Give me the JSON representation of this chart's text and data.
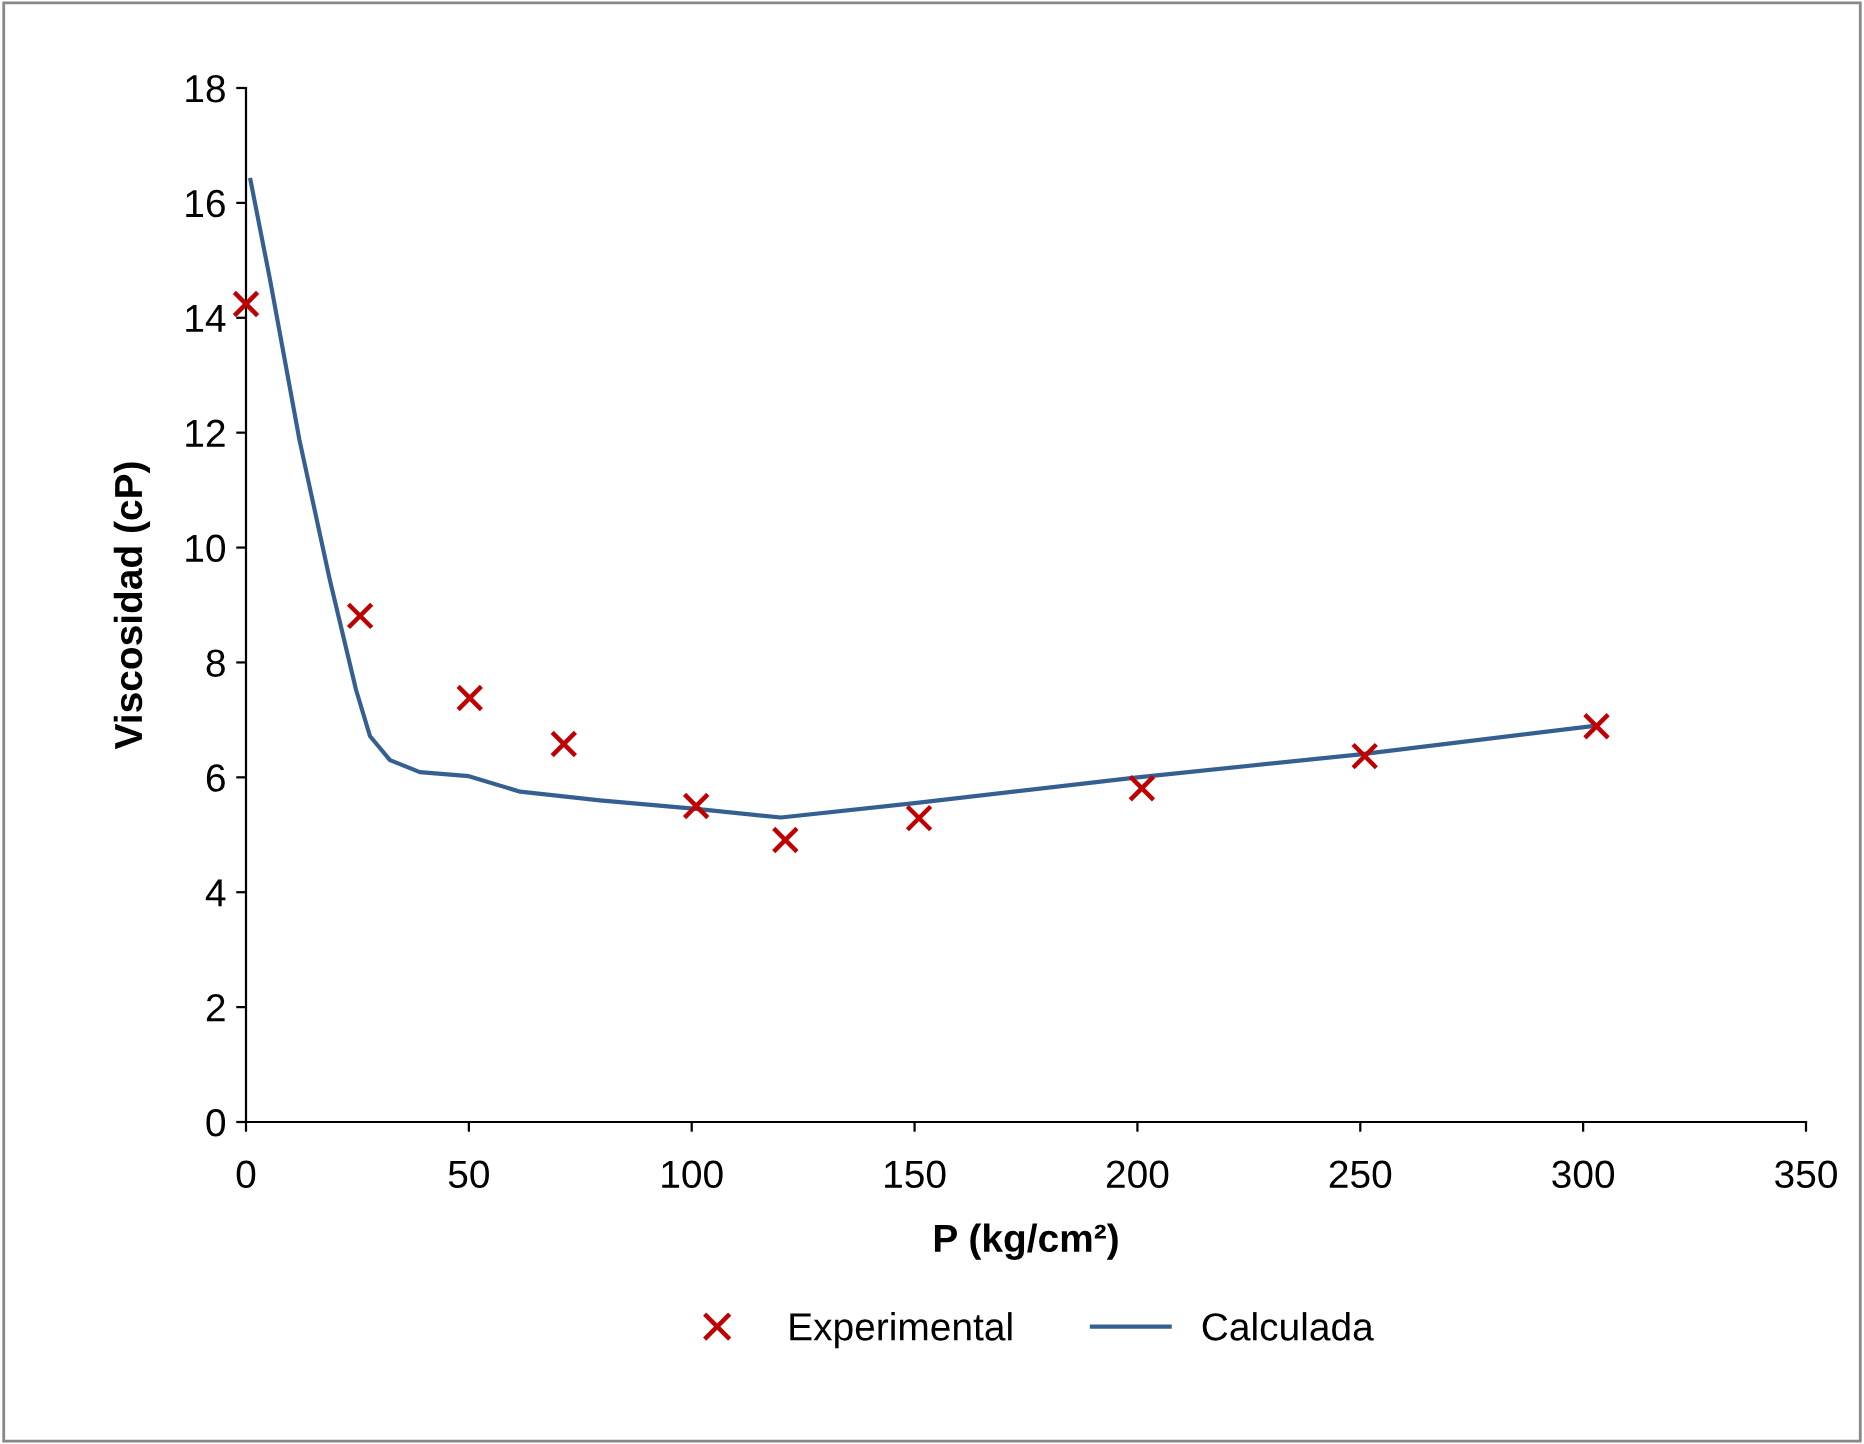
{
  "chart_data": {
    "type": "scatter",
    "xlabel": "P (kg/cm²)",
    "ylabel": "Viscosidad (cP)",
    "xlim": [
      0,
      350
    ],
    "xticks": [
      0,
      50,
      100,
      150,
      200,
      250,
      300,
      350
    ],
    "ylim": [
      0,
      18
    ],
    "yticks": [
      0,
      2,
      4,
      6,
      8,
      10,
      12,
      14,
      16,
      18
    ],
    "grid": false,
    "legend": "bottom",
    "series": [
      {
        "name": "Experimental",
        "marker": "cross",
        "color": "#c00000",
        "x": [
          0,
          25.6,
          50.2,
          71.3,
          101,
          121,
          151,
          201,
          251,
          303
        ],
        "values": [
          14.24,
          8.81,
          7.38,
          6.58,
          5.5,
          4.91,
          5.29,
          5.81,
          6.37,
          6.89
        ]
      },
      {
        "name": "Calculada",
        "type": "line",
        "marker": "none",
        "color": "#365f91",
        "x": [
          1,
          5.4,
          12,
          18.8,
          24.7,
          27.8,
          32.3,
          39,
          50,
          61.5,
          79.4,
          101,
          120,
          150,
          200,
          250,
          303
        ],
        "values": [
          16.4,
          14.66,
          11.87,
          9.44,
          7.52,
          6.72,
          6.3,
          6.09,
          6.02,
          5.75,
          5.6,
          5.45,
          5.3,
          5.55,
          6.0,
          6.4,
          6.9
        ]
      }
    ]
  }
}
